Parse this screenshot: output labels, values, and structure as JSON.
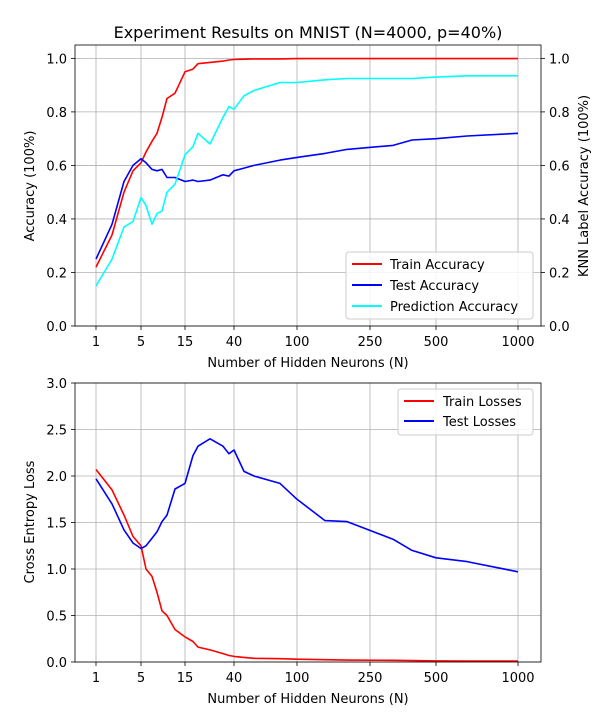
{
  "chart_data": [
    {
      "type": "line",
      "title": "Experiment Results on MNIST (N=4000, p=40%)",
      "xlabel": "Number of Hidden Neurons (N)",
      "ylabel": "Accuracy (100%)",
      "ylabel_right": "KNN Label Accuracy (100%)",
      "x_tick_labels": [
        "1",
        "5",
        "15",
        "40",
        "100",
        "250",
        "500",
        "1000"
      ],
      "y_ticks": [
        "0.0",
        "0.2",
        "0.4",
        "0.6",
        "0.8",
        "1.0"
      ],
      "y_ticks_right": [
        "0.0",
        "0.2",
        "0.4",
        "0.6",
        "0.8",
        "1.0"
      ],
      "ylim": [
        0,
        1.05
      ],
      "grid": true,
      "legend_position": "lower-right",
      "series": [
        {
          "name": "Train Accuracy",
          "color": "#ff0000",
          "x": [
            1,
            2,
            3,
            4,
            5,
            6,
            7,
            8,
            9,
            10,
            12,
            15,
            18,
            20,
            25,
            30,
            35,
            40,
            50,
            60,
            80,
            100,
            150,
            200,
            300,
            400,
            500,
            700,
            1000
          ],
          "y": [
            0.22,
            0.34,
            0.5,
            0.58,
            0.61,
            0.65,
            0.69,
            0.72,
            0.78,
            0.85,
            0.87,
            0.95,
            0.96,
            0.98,
            0.985,
            0.99,
            0.994,
            0.996,
            0.997,
            0.998,
            0.998,
            0.999,
            0.999,
            0.999,
            0.999,
            0.999,
            0.999,
            0.999,
            0.999
          ]
        },
        {
          "name": "Test Accuracy",
          "color": "#0000ff",
          "x": [
            1,
            2,
            3,
            4,
            5,
            6,
            7,
            8,
            9,
            10,
            12,
            15,
            18,
            20,
            25,
            30,
            35,
            40,
            50,
            60,
            80,
            100,
            150,
            200,
            300,
            400,
            500,
            700,
            1000
          ],
          "y": [
            0.25,
            0.38,
            0.54,
            0.6,
            0.625,
            0.61,
            0.585,
            0.58,
            0.585,
            0.555,
            0.555,
            0.54,
            0.545,
            0.54,
            0.545,
            0.565,
            0.56,
            0.58,
            0.59,
            0.6,
            0.62,
            0.63,
            0.645,
            0.66,
            0.675,
            0.695,
            0.7,
            0.71,
            0.72
          ]
        },
        {
          "name": "Prediction Accuracy",
          "color": "#00ffff",
          "x": [
            1,
            2,
            3,
            4,
            5,
            6,
            7,
            8,
            9,
            10,
            12,
            15,
            18,
            20,
            25,
            30,
            35,
            40,
            50,
            60,
            80,
            100,
            150,
            200,
            300,
            400,
            500,
            700,
            1000
          ],
          "y": [
            0.15,
            0.25,
            0.37,
            0.39,
            0.48,
            0.45,
            0.38,
            0.42,
            0.43,
            0.5,
            0.53,
            0.64,
            0.67,
            0.72,
            0.68,
            0.78,
            0.82,
            0.81,
            0.86,
            0.88,
            0.91,
            0.91,
            0.92,
            0.925,
            0.925,
            0.925,
            0.93,
            0.935,
            0.935
          ]
        }
      ]
    },
    {
      "type": "line",
      "title": "",
      "xlabel": "Number of Hidden Neurons (N)",
      "ylabel": "Cross Entropy Loss",
      "x_tick_labels": [
        "1",
        "5",
        "15",
        "40",
        "100",
        "250",
        "500",
        "1000"
      ],
      "y_ticks": [
        "0.0",
        "0.5",
        "1.0",
        "1.5",
        "2.0",
        "2.5",
        "3.0"
      ],
      "ylim": [
        0,
        3.0
      ],
      "grid": true,
      "legend_position": "upper-right",
      "series": [
        {
          "name": "Train Losses",
          "color": "#ff0000",
          "x": [
            1,
            2,
            3,
            4,
            5,
            6,
            7,
            8,
            9,
            10,
            12,
            15,
            18,
            20,
            25,
            30,
            35,
            40,
            50,
            60,
            80,
            100,
            150,
            200,
            300,
            400,
            500,
            700,
            1000
          ],
          "y": [
            2.07,
            1.85,
            1.58,
            1.35,
            1.25,
            1.0,
            0.92,
            0.75,
            0.55,
            0.5,
            0.35,
            0.27,
            0.22,
            0.16,
            0.13,
            0.09,
            0.07,
            0.06,
            0.05,
            0.04,
            0.035,
            0.03,
            0.025,
            0.02,
            0.018,
            0.015,
            0.012,
            0.01,
            0.01
          ]
        },
        {
          "name": "Test Losses",
          "color": "#0000ff",
          "x": [
            1,
            2,
            3,
            4,
            5,
            6,
            7,
            8,
            9,
            10,
            12,
            15,
            18,
            20,
            25,
            30,
            35,
            40,
            50,
            60,
            80,
            100,
            150,
            200,
            300,
            400,
            500,
            700,
            1000
          ],
          "y": [
            1.97,
            1.7,
            1.42,
            1.28,
            1.22,
            1.25,
            1.33,
            1.4,
            1.51,
            1.58,
            1.86,
            1.92,
            2.22,
            2.32,
            2.4,
            2.32,
            2.24,
            2.28,
            2.05,
            2.0,
            1.92,
            1.75,
            1.52,
            1.51,
            1.32,
            1.2,
            1.12,
            1.08,
            0.97
          ]
        }
      ]
    }
  ]
}
